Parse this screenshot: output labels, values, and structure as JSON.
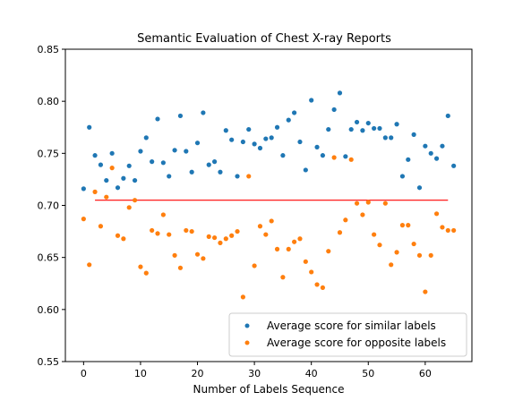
{
  "chart_data": {
    "type": "scatter",
    "title": "Semantic Evaluation of Chest X-ray Reports",
    "xlabel": "Number of Labels Sequence",
    "ylabel": "",
    "xlim": [
      -3.2,
      68.2
    ],
    "ylim": [
      0.55,
      0.85
    ],
    "x_ticks": [
      0,
      10,
      20,
      30,
      40,
      50,
      60
    ],
    "y_ticks": [
      0.55,
      0.6,
      0.65,
      0.7,
      0.75,
      0.8,
      0.85
    ],
    "y_tick_labels": [
      "0.55",
      "0.60",
      "0.65",
      "0.70",
      "0.75",
      "0.80",
      "0.85"
    ],
    "grid": false,
    "legend_position": "lower-right",
    "series": [
      {
        "name": "Average score for similar labels",
        "color": "#1f77b4",
        "x": [
          0,
          1,
          2,
          3,
          4,
          5,
          6,
          7,
          8,
          9,
          10,
          11,
          12,
          13,
          14,
          15,
          16,
          17,
          18,
          19,
          20,
          21,
          22,
          23,
          24,
          25,
          26,
          27,
          28,
          29,
          30,
          31,
          32,
          33,
          34,
          35,
          36,
          37,
          38,
          39,
          40,
          41,
          42,
          43,
          44,
          45,
          46,
          47,
          48,
          49,
          50,
          51,
          52,
          53,
          54,
          55,
          56,
          57,
          58,
          59,
          60,
          61,
          62,
          63,
          64,
          65
        ],
        "y": [
          0.716,
          0.775,
          0.748,
          0.739,
          0.724,
          0.75,
          0.717,
          0.726,
          0.738,
          0.724,
          0.752,
          0.765,
          0.742,
          0.783,
          0.741,
          0.728,
          0.753,
          0.786,
          0.752,
          0.732,
          0.76,
          0.789,
          0.739,
          0.742,
          0.732,
          0.772,
          0.763,
          0.728,
          0.761,
          0.773,
          0.759,
          0.755,
          0.764,
          0.765,
          0.775,
          0.748,
          0.782,
          0.789,
          0.761,
          0.734,
          0.801,
          0.756,
          0.748,
          0.773,
          0.792,
          0.808,
          0.747,
          0.773,
          0.78,
          0.772,
          0.779,
          0.774,
          0.774,
          0.765,
          0.765,
          0.778,
          0.728,
          0.744,
          0.768,
          0.717,
          0.757,
          0.75,
          0.745,
          0.757,
          0.786,
          0.738
        ]
      },
      {
        "name": "Average score for opposite labels",
        "color": "#ff7f0e",
        "x": [
          0,
          1,
          2,
          3,
          4,
          5,
          6,
          7,
          8,
          9,
          10,
          11,
          12,
          13,
          14,
          15,
          16,
          17,
          18,
          19,
          20,
          21,
          22,
          23,
          24,
          25,
          26,
          27,
          28,
          29,
          30,
          31,
          32,
          33,
          34,
          35,
          36,
          37,
          38,
          39,
          40,
          41,
          42,
          43,
          44,
          45,
          46,
          47,
          48,
          49,
          50,
          51,
          52,
          53,
          54,
          55,
          56,
          57,
          58,
          59,
          60,
          61,
          62,
          63,
          64,
          65
        ],
        "y": [
          0.687,
          0.643,
          0.713,
          0.68,
          0.708,
          0.736,
          0.671,
          0.668,
          0.698,
          0.705,
          0.641,
          0.635,
          0.676,
          0.673,
          0.691,
          0.672,
          0.652,
          0.64,
          0.676,
          0.675,
          0.653,
          0.649,
          0.67,
          0.669,
          0.664,
          0.668,
          0.671,
          0.675,
          0.612,
          0.728,
          0.642,
          0.68,
          0.672,
          0.685,
          0.658,
          0.631,
          0.658,
          0.665,
          0.668,
          0.646,
          0.636,
          0.624,
          0.621,
          0.656,
          0.746,
          0.674,
          0.686,
          0.744,
          0.702,
          0.691,
          0.703,
          0.672,
          0.662,
          0.702,
          0.643,
          0.655,
          0.681,
          0.681,
          0.663,
          0.652,
          0.617,
          0.652,
          0.692,
          0.679,
          0.676,
          0.676
        ]
      }
    ],
    "reference_line": {
      "color": "#ff0000",
      "x": [
        2,
        64
      ],
      "y": [
        0.705,
        0.705
      ]
    }
  }
}
